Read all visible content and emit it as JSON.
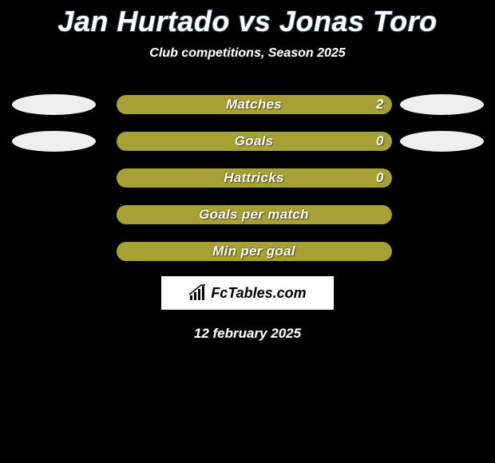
{
  "header": {
    "title": "Jan Hurtado vs Jonas Toro",
    "subtitle": "Club competitions, Season 2025"
  },
  "chart": {
    "type": "bar",
    "track_width": 345,
    "track_height": 24,
    "border_radius": 12,
    "ellipse_colors": {
      "left": "#efefef",
      "right": "#efefef"
    },
    "rows": [
      {
        "label": "Matches",
        "value": "2",
        "fill_color": "#a7a034",
        "fill_width_pct": 100,
        "show_value": true,
        "show_ellipses": true
      },
      {
        "label": "Goals",
        "value": "0",
        "fill_color": "#a7a034",
        "fill_width_pct": 100,
        "show_value": true,
        "show_ellipses": true
      },
      {
        "label": "Hattricks",
        "value": "0",
        "fill_color": "#a7a034",
        "fill_width_pct": 100,
        "show_value": true,
        "show_ellipses": false
      },
      {
        "label": "Goals per match",
        "value": "",
        "fill_color": "#a7a034",
        "fill_width_pct": 100,
        "show_value": false,
        "show_ellipses": false
      },
      {
        "label": "Min per goal",
        "value": "",
        "fill_color": "#a7a034",
        "fill_width_pct": 100,
        "show_value": false,
        "show_ellipses": false
      }
    ]
  },
  "branding": {
    "text": "FcTables.com"
  },
  "footer": {
    "date": "12 february 2025"
  },
  "style": {
    "background_color": "#000000",
    "title_fontsize": 36,
    "subtitle_fontsize": 16,
    "label_fontsize": 17,
    "title_color": "#ffffff",
    "title_outline": "#2a3a40"
  }
}
